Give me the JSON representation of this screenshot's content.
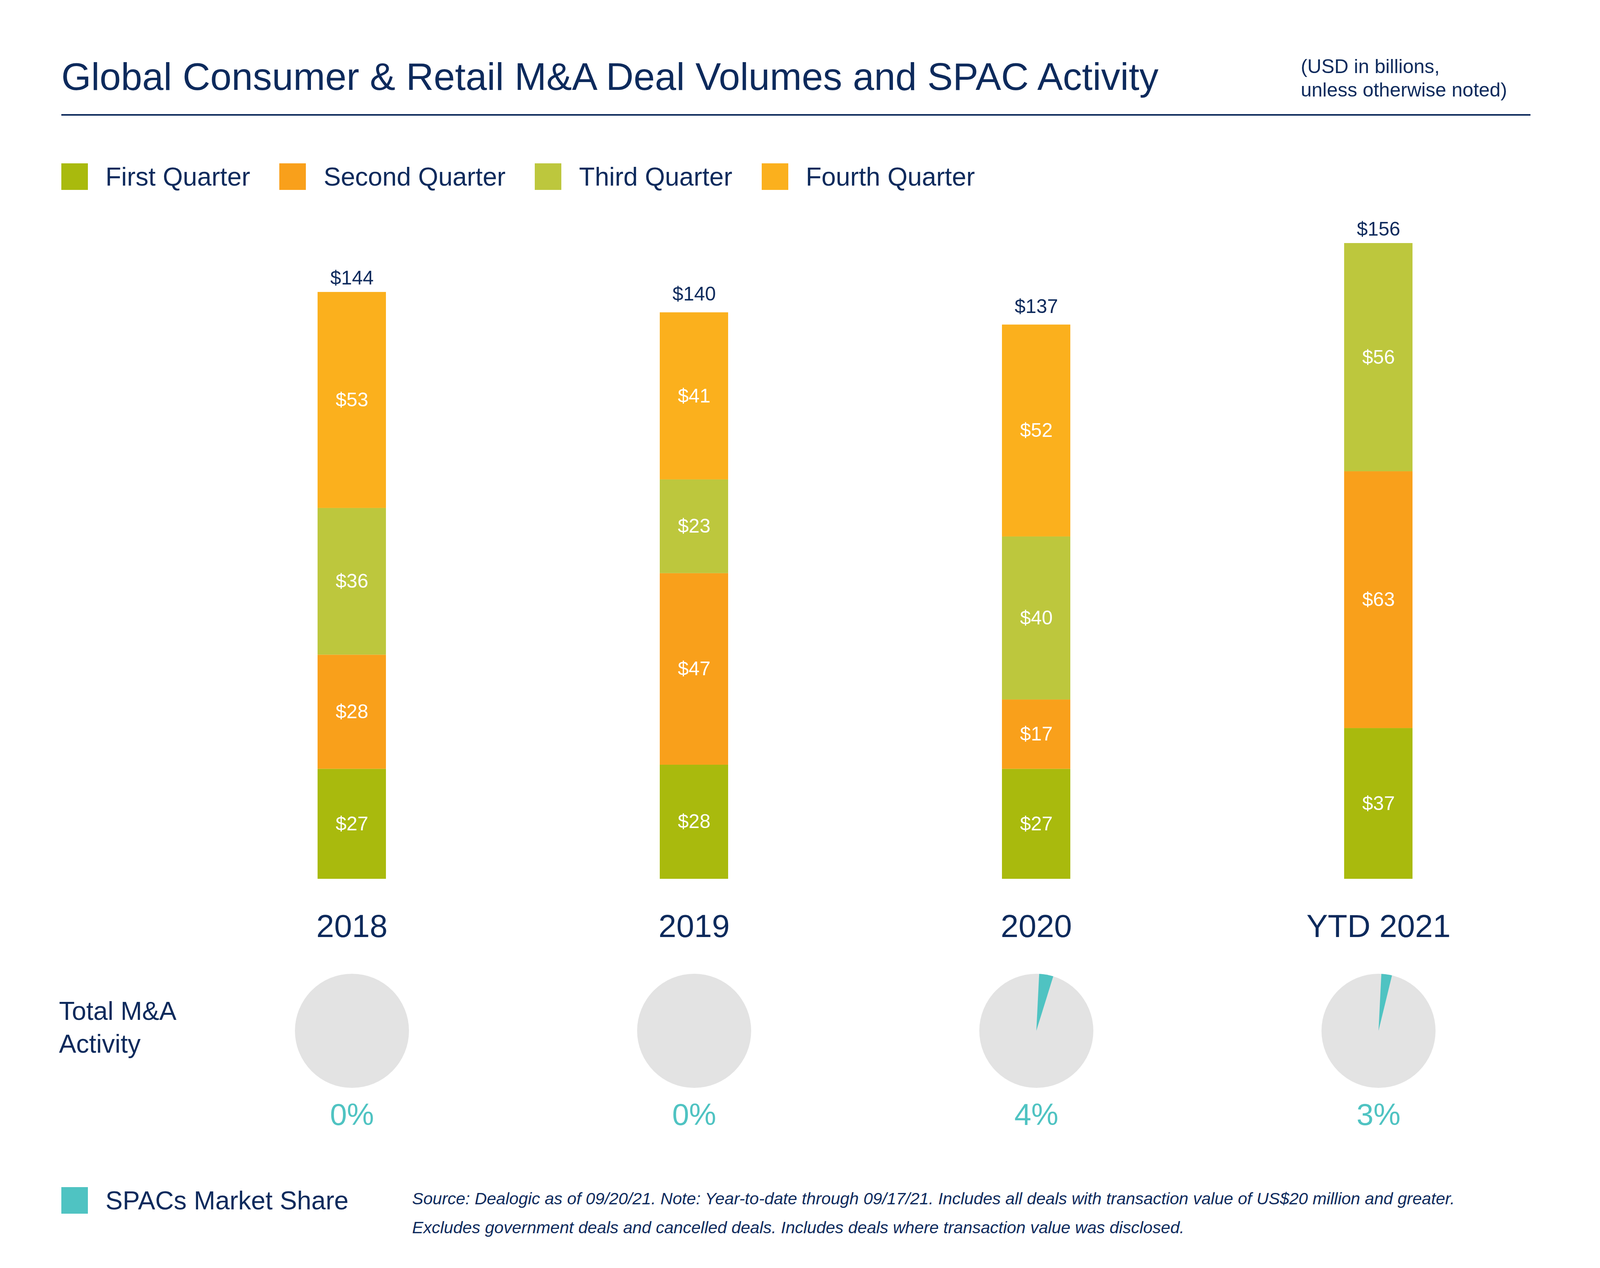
{
  "chart_data": [
    {
      "type": "bar",
      "title": "Global Consumer & Retail M&A Deal Volumes and SPAC Activity",
      "subtitle": [
        "(USD in billions,",
        "unless otherwise noted)"
      ],
      "categories": [
        "2018",
        "2019",
        "2020",
        "YTD 2021"
      ],
      "stacked": true,
      "data_labels": true,
      "tick_labels": "x",
      "legend": "top",
      "series": [
        {
          "name": "First Quarter",
          "color": "#a9ba0d",
          "values": [
            27,
            28,
            27,
            37
          ],
          "value_labels": [
            "$27",
            "$28",
            "$27",
            "$37"
          ]
        },
        {
          "name": "Second Quarter",
          "color": "#f9a01b",
          "values": [
            28,
            47,
            17,
            63
          ],
          "value_labels": [
            "$28",
            "$47",
            "$17",
            "$63"
          ]
        },
        {
          "name": "Third Quarter",
          "color": "#bdc73d",
          "values": [
            36,
            23,
            40,
            56
          ],
          "value_labels": [
            "$36",
            "$23",
            "$40",
            "$56"
          ]
        },
        {
          "name": "Fourth Quarter",
          "color": "#fbb01d",
          "values": [
            53,
            41,
            52,
            null
          ],
          "value_labels": [
            "$53",
            "$41",
            "$52",
            null
          ]
        }
      ],
      "totals": [
        144,
        140,
        137,
        156
      ],
      "total_labels": [
        "$144",
        "$140",
        "$137",
        "$156"
      ],
      "caption": "Source: Dealogic as of 09/20/21. Note: Year-to-date through 09/17/21. Includes all deals with transaction value of US$20 million and greater. Excludes government deals and cancelled deals. Includes deals where transaction value was disclosed."
    },
    {
      "type": "pie",
      "title": "Total M&A Activity",
      "categories": [
        "2018",
        "2019",
        "2020",
        "YTD 2021"
      ],
      "data_labels": true,
      "legend": "bottom",
      "series": [
        {
          "name": "SPACs Market Share",
          "color": "#4fc3c2",
          "values": [
            0,
            0,
            4,
            3
          ],
          "value_labels": [
            "0%",
            "0%",
            "4%",
            "3%"
          ]
        }
      ]
    }
  ]
}
